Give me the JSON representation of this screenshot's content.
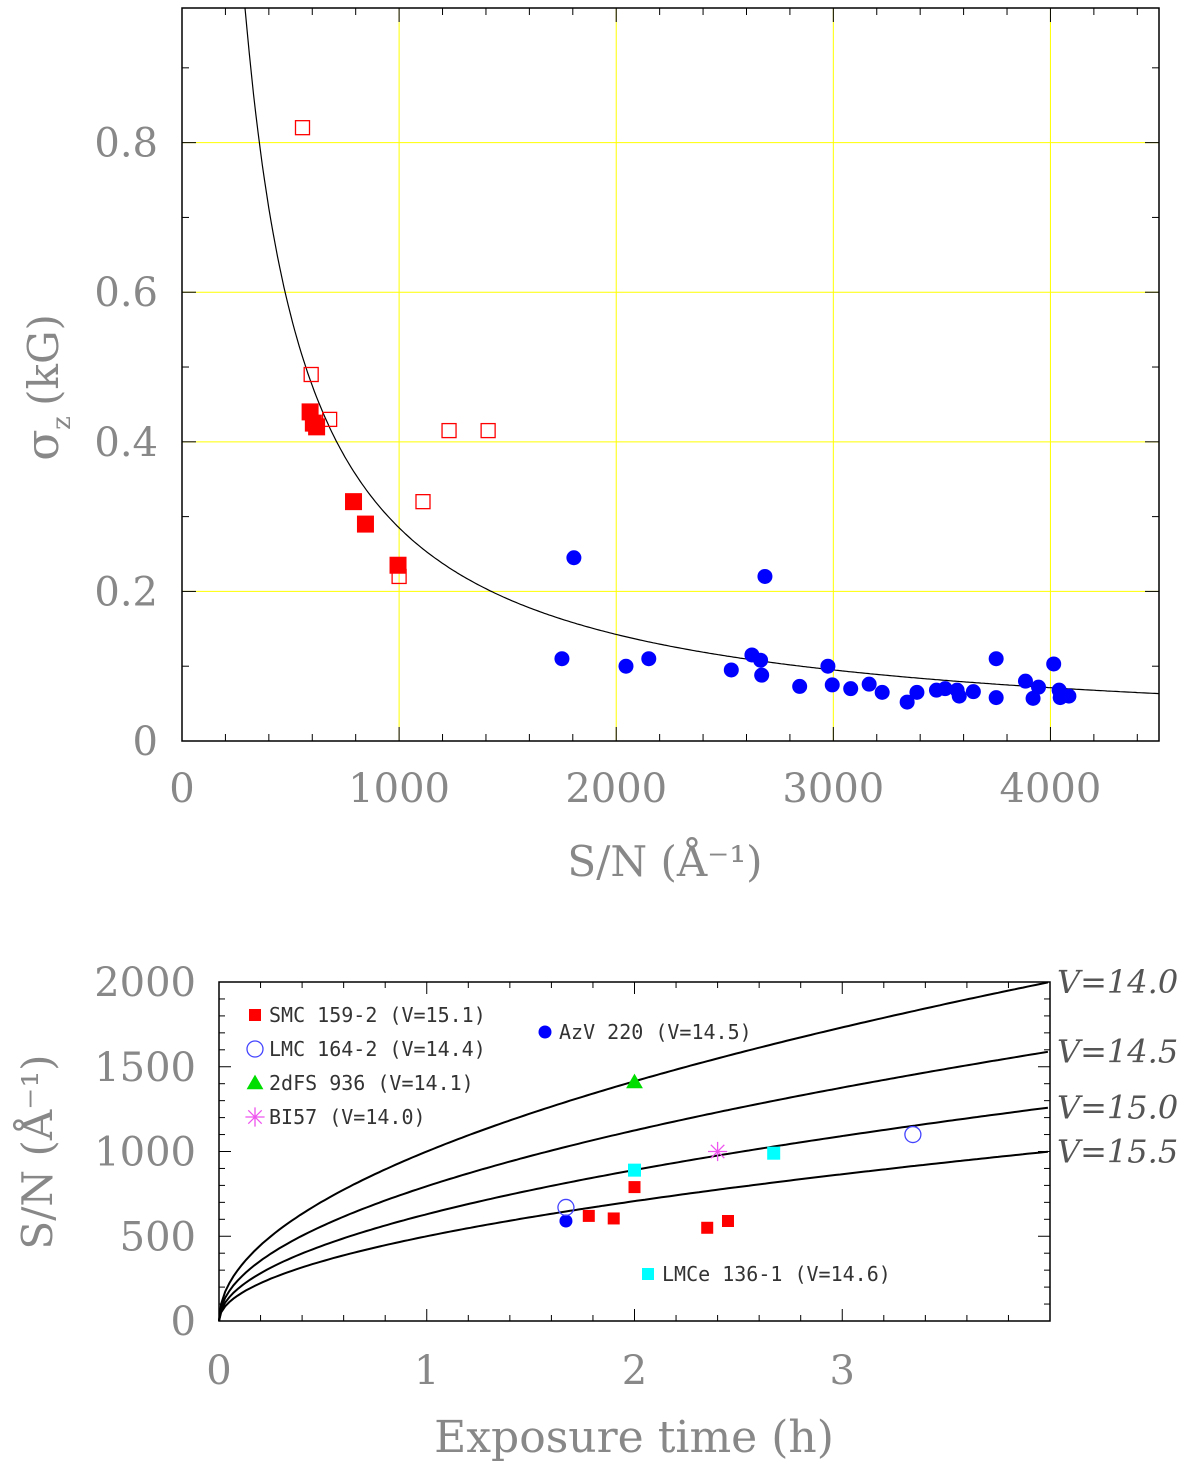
{
  "chart_data": [
    {
      "type": "scatter",
      "xlabel": "S/N  (Å⁻¹)",
      "ylabel_main": "σ",
      "ylabel_sub": "z",
      "ylabel_unit": "(kG)",
      "xlim": [
        0,
        4500
      ],
      "ylim": [
        0,
        0.98
      ],
      "xticks": [
        0,
        1000,
        2000,
        3000,
        4000
      ],
      "xtick_labels": [
        "0",
        "1000",
        "2000",
        "3000",
        "4000"
      ],
      "yticks": [
        0,
        0.2,
        0.4,
        0.6,
        0.8
      ],
      "ytick_labels": [
        "0",
        "0.2",
        "0.4",
        "0.6",
        "0.8"
      ],
      "grid_x": [
        1000,
        2000,
        3000,
        4000
      ],
      "grid_y": [
        0.2,
        0.4,
        0.6,
        0.8
      ],
      "grid_color": "#ffff00",
      "curve": {
        "name": "fit",
        "formula_coefficient": 285,
        "x_start": 290,
        "x_end": 4500,
        "color": "#000000"
      },
      "series": [
        {
          "name": "open red squares",
          "color": "#ff0000",
          "marker": "open-square",
          "points": [
            [
              555,
              0.82
            ],
            [
              595,
              0.49
            ],
            [
              680,
              0.43
            ],
            [
              1000,
              0.22
            ],
            [
              1110,
              0.32
            ],
            [
              1230,
              0.415
            ],
            [
              1410,
              0.415
            ]
          ]
        },
        {
          "name": "filled red squares",
          "color": "#ff0000",
          "marker": "filled-square",
          "points": [
            [
              590,
              0.44
            ],
            [
              605,
              0.425
            ],
            [
              620,
              0.42
            ],
            [
              790,
              0.32
            ],
            [
              845,
              0.29
            ],
            [
              995,
              0.235
            ]
          ]
        },
        {
          "name": "filled blue circles",
          "color": "#0000ff",
          "marker": "filled-circle",
          "points": [
            [
              1750,
              0.11
            ],
            [
              1805,
              0.245
            ],
            [
              2045,
              0.1
            ],
            [
              2150,
              0.11
            ],
            [
              2530,
              0.095
            ],
            [
              2625,
              0.115
            ],
            [
              2665,
              0.108
            ],
            [
              2670,
              0.088
            ],
            [
              2685,
              0.22
            ],
            [
              2845,
              0.073
            ],
            [
              2975,
              0.1
            ],
            [
              2995,
              0.075
            ],
            [
              3080,
              0.07
            ],
            [
              3165,
              0.076
            ],
            [
              3225,
              0.065
            ],
            [
              3340,
              0.052
            ],
            [
              3385,
              0.065
            ],
            [
              3475,
              0.068
            ],
            [
              3515,
              0.07
            ],
            [
              3570,
              0.068
            ],
            [
              3580,
              0.06
            ],
            [
              3645,
              0.066
            ],
            [
              3750,
              0.11
            ],
            [
              3750,
              0.058
            ],
            [
              3885,
              0.08
            ],
            [
              3920,
              0.057
            ],
            [
              3945,
              0.072
            ],
            [
              4015,
              0.103
            ],
            [
              4040,
              0.068
            ],
            [
              4045,
              0.058
            ],
            [
              4085,
              0.06
            ]
          ]
        }
      ]
    },
    {
      "type": "line",
      "xlabel": "Exposure time (h)",
      "ylabel": "S/N (Å⁻¹)",
      "xlim": [
        0,
        4
      ],
      "ylim": [
        0,
        2000
      ],
      "xticks": [
        0,
        1,
        2,
        3
      ],
      "xtick_labels": [
        "0",
        "1",
        "2",
        "3"
      ],
      "yticks": [
        0,
        500,
        1000,
        1500,
        2000
      ],
      "ytick_labels": [
        "0",
        "500",
        "1000",
        "1500",
        "2000"
      ],
      "curves": [
        {
          "name": "V=14.0",
          "label": "V=14.0",
          "sn_at_4h": 2000
        },
        {
          "name": "V=14.5",
          "label": "V=14.5",
          "sn_at_4h": 1590
        },
        {
          "name": "V=15.0",
          "label": "V=15.0",
          "sn_at_4h": 1260
        },
        {
          "name": "V=15.5",
          "label": "V=15.5",
          "sn_at_4h": 1000
        }
      ],
      "series": [
        {
          "name": "SMC 159-2 (V=15.1)",
          "color": "#ff0000",
          "marker": "filled-square",
          "points": [
            [
              1.78,
              620
            ],
            [
              1.9,
              605
            ],
            [
              2.0,
              790
            ],
            [
              2.35,
              550
            ],
            [
              2.45,
              590
            ]
          ]
        },
        {
          "name": "AzV 220 (V=14.5)",
          "color": "#0000ff",
          "marker": "filled-circle",
          "points": [
            [
              1.67,
              590
            ]
          ]
        },
        {
          "name": "LMC 164-2 (V=14.4)",
          "color": "#4444ff",
          "marker": "open-circle",
          "points": [
            [
              1.67,
              670
            ],
            [
              3.34,
              1100
            ]
          ]
        },
        {
          "name": "2dFS 936 (V=14.1)",
          "color": "#00dd00",
          "marker": "filled-triangle",
          "points": [
            [
              2.0,
              1410
            ]
          ]
        },
        {
          "name": "BI57 (V=14.0)",
          "color": "#ee55ee",
          "marker": "asterisk",
          "points": [
            [
              2.4,
              1000
            ]
          ]
        },
        {
          "name": "LMCe 136-1 (V=14.6)",
          "color": "#00ffff",
          "marker": "filled-square",
          "points": [
            [
              2.0,
              890
            ],
            [
              2.67,
              990
            ]
          ]
        }
      ],
      "legend": [
        {
          "text": "SMC 159-2 (V=15.1)",
          "marker": "filled-square",
          "color": "#ff0000"
        },
        {
          "text": "LMC 164-2 (V=14.4)",
          "marker": "open-circle",
          "color": "#4444ff"
        },
        {
          "text": "2dFS 936 (V=14.1)",
          "marker": "filled-triangle",
          "color": "#00dd00"
        },
        {
          "text": "BI57 (V=14.0)",
          "marker": "asterisk",
          "color": "#ee55ee"
        },
        {
          "text": "AzV 220 (V=14.5)",
          "marker": "filled-circle",
          "color": "#0000ff"
        },
        {
          "text": "LMCe 136-1 (V=14.6)",
          "marker": "filled-square",
          "color": "#00ffff"
        }
      ]
    }
  ]
}
